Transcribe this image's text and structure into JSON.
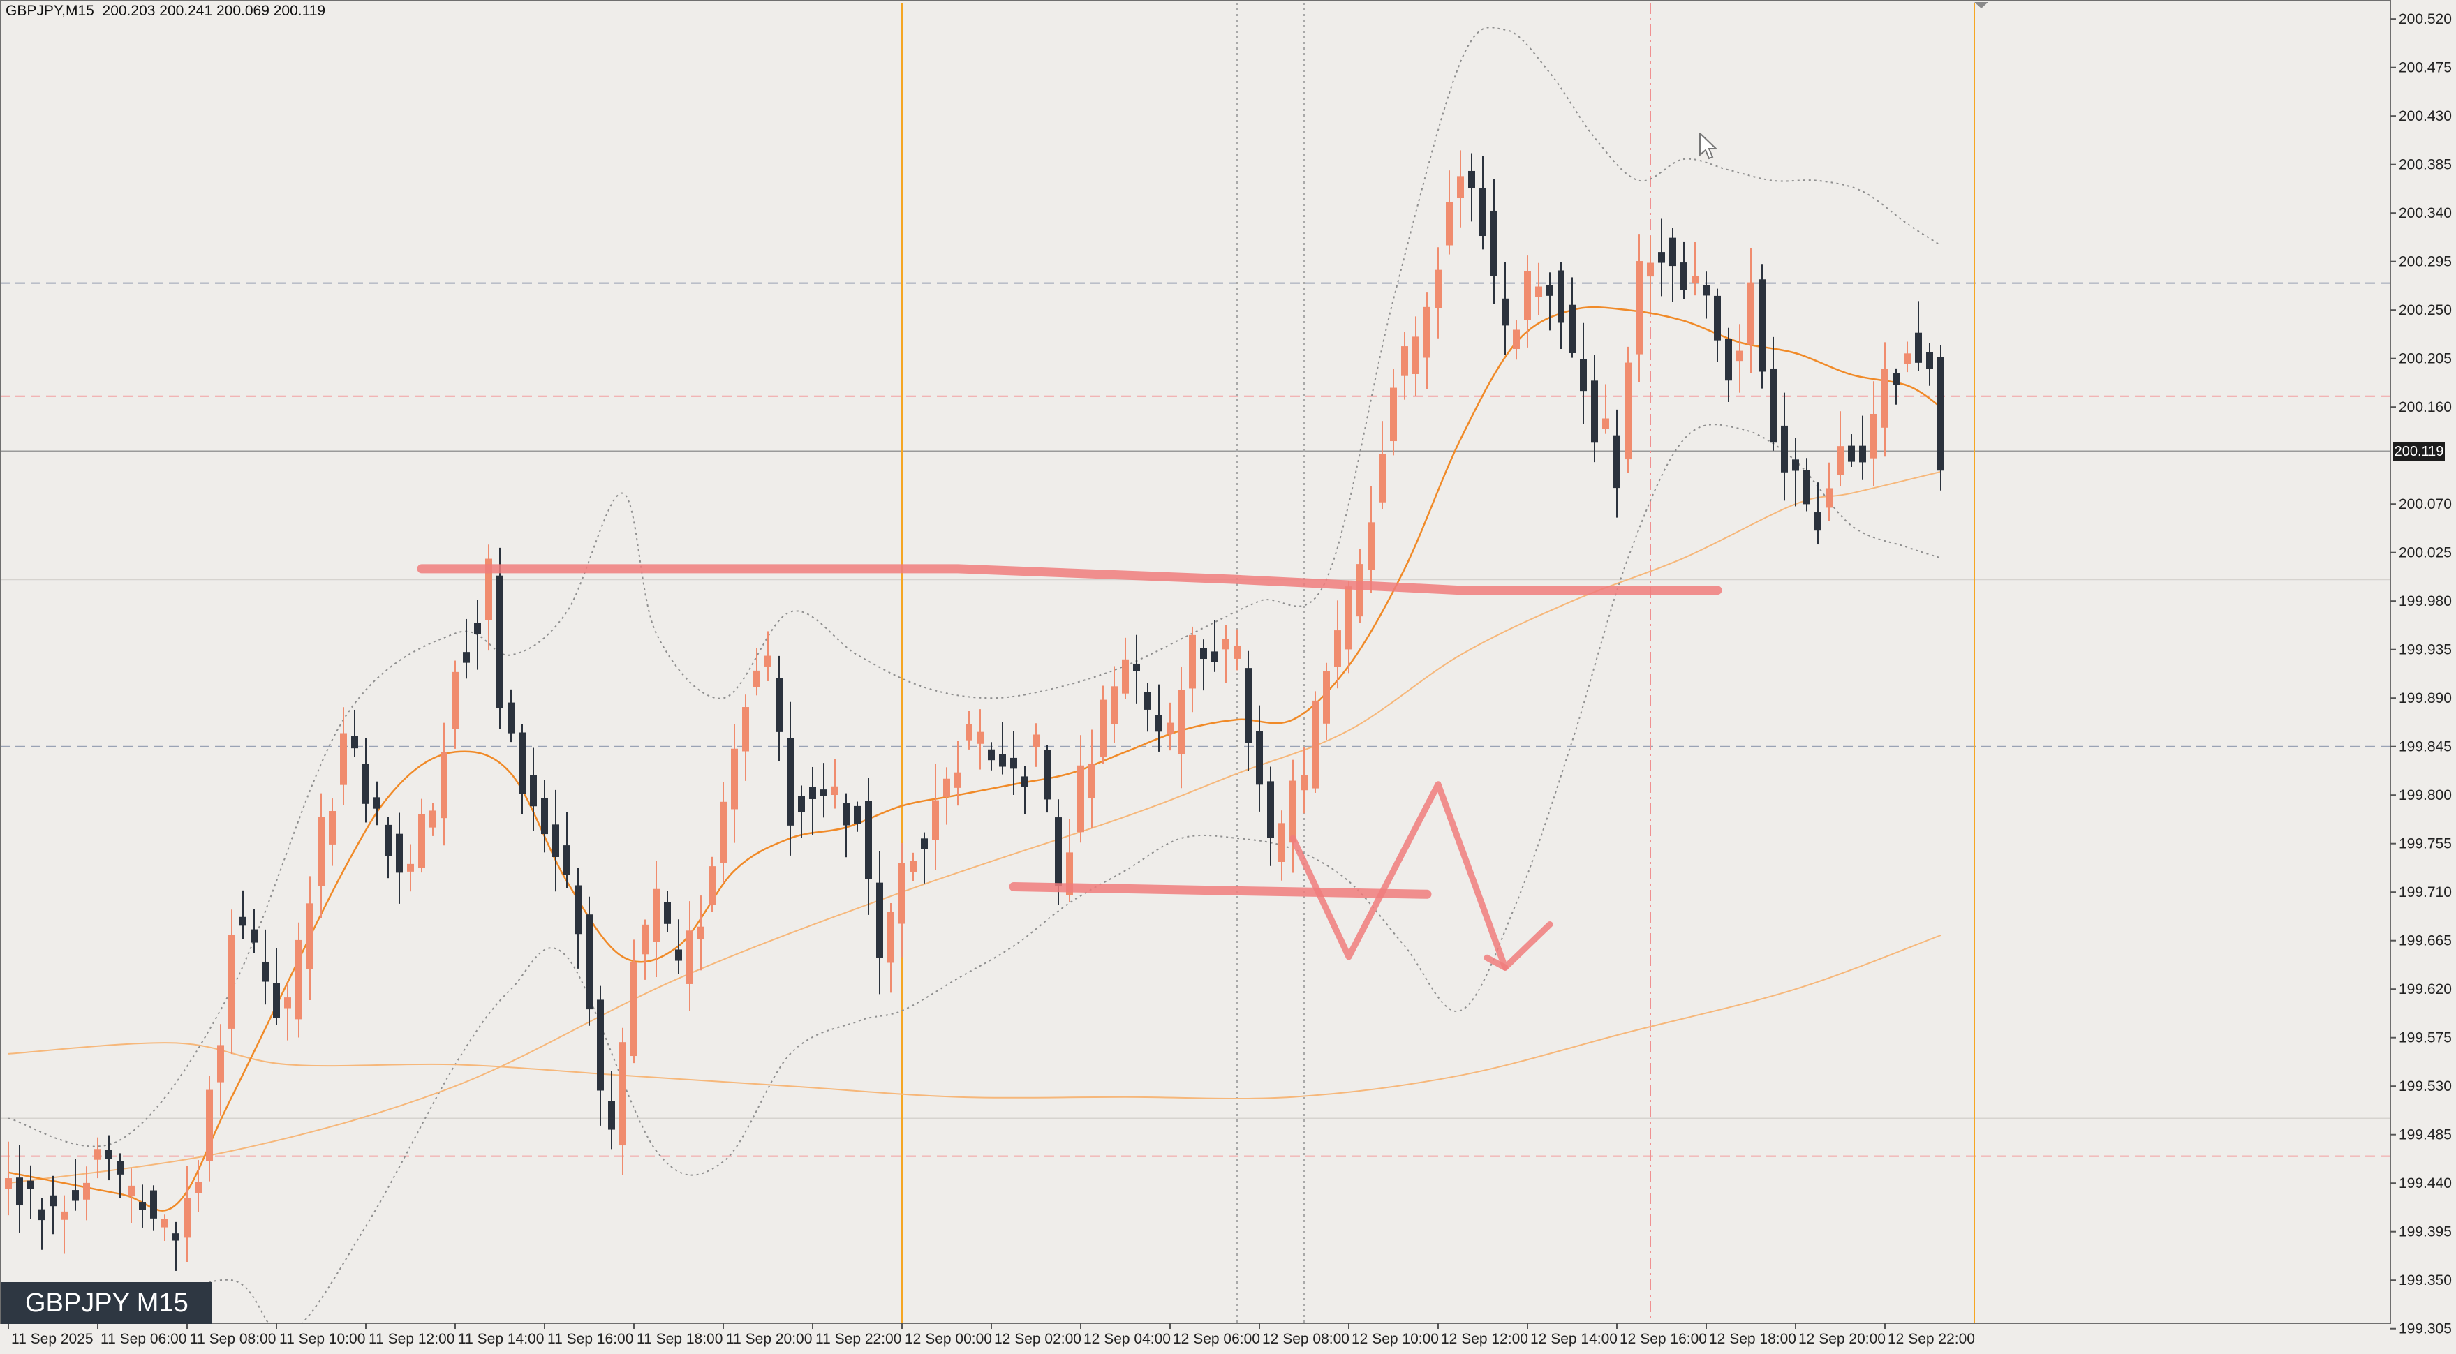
{
  "window": {
    "header_symbol": "GBPJPY,M15",
    "header_ohlc": "200.203 200.241 200.069 200.119",
    "symbol_badge": "GBPJPY M15",
    "current_price_label": "200.119"
  },
  "colors": {
    "background": "#efedea",
    "bull_candle": "#f08c6e",
    "bear_candle": "#2b323d",
    "ma_fast": "#f08a28",
    "ma_slow": "#f6b77a",
    "bollinger": "#8f8f8f",
    "drawing": "#f07c7c",
    "session_line": "#f5a623",
    "dashed_blue": "#9aa3b5",
    "dashed_red": "#f2a1a1"
  },
  "chart_data": {
    "type": "candlestick",
    "ylim": [
      199.31,
      200.535
    ],
    "y_ticks": [
      "200.520",
      "200.475",
      "200.430",
      "200.385",
      "200.340",
      "200.295",
      "200.250",
      "200.205",
      "200.160",
      "200.070",
      "200.025",
      "199.980",
      "199.935",
      "199.890",
      "199.845",
      "199.800",
      "199.755",
      "199.710",
      "199.665",
      "199.620",
      "199.575",
      "199.530",
      "199.485",
      "199.440",
      "199.395",
      "199.350",
      "199.305"
    ],
    "x_ticks": [
      {
        "label": "11 Sep 2025",
        "bar": 0
      },
      {
        "label": "11 Sep 06:00",
        "bar": 8
      },
      {
        "label": "11 Sep 08:00",
        "bar": 16
      },
      {
        "label": "11 Sep 10:00",
        "bar": 24
      },
      {
        "label": "11 Sep 12:00",
        "bar": 32
      },
      {
        "label": "11 Sep 14:00",
        "bar": 40
      },
      {
        "label": "11 Sep 16:00",
        "bar": 48
      },
      {
        "label": "11 Sep 18:00",
        "bar": 56
      },
      {
        "label": "11 Sep 20:00",
        "bar": 64
      },
      {
        "label": "11 Sep 22:00",
        "bar": 72
      },
      {
        "label": "12 Sep 00:00",
        "bar": 80
      },
      {
        "label": "12 Sep 02:00",
        "bar": 88
      },
      {
        "label": "12 Sep 04:00",
        "bar": 96
      },
      {
        "label": "12 Sep 06:00",
        "bar": 104
      },
      {
        "label": "12 Sep 08:00",
        "bar": 112
      },
      {
        "label": "12 Sep 10:00",
        "bar": 120
      },
      {
        "label": "12 Sep 12:00",
        "bar": 128
      },
      {
        "label": "12 Sep 14:00",
        "bar": 136
      },
      {
        "label": "12 Sep 16:00",
        "bar": 144
      },
      {
        "label": "12 Sep 18:00",
        "bar": 152
      },
      {
        "label": "12 Sep 20:00",
        "bar": 160
      },
      {
        "label": "12 Sep 22:00",
        "bar": 168
      }
    ],
    "close_path": [
      [
        0,
        199.44
      ],
      [
        4,
        199.41
      ],
      [
        8,
        199.46
      ],
      [
        12,
        199.42
      ],
      [
        15,
        199.39
      ],
      [
        17,
        199.46
      ],
      [
        19,
        199.58
      ],
      [
        20,
        199.69
      ],
      [
        23,
        199.62
      ],
      [
        25,
        199.6
      ],
      [
        28,
        199.76
      ],
      [
        30,
        199.85
      ],
      [
        33,
        199.78
      ],
      [
        35,
        199.72
      ],
      [
        38,
        199.79
      ],
      [
        40,
        199.92
      ],
      [
        42,
        199.97
      ],
      [
        43,
        200.01
      ],
      [
        44,
        199.88
      ],
      [
        46,
        199.82
      ],
      [
        48,
        199.77
      ],
      [
        50,
        199.73
      ],
      [
        52,
        199.62
      ],
      [
        53,
        199.51
      ],
      [
        54,
        199.47
      ],
      [
        56,
        199.64
      ],
      [
        58,
        199.7
      ],
      [
        60,
        199.63
      ],
      [
        62,
        199.69
      ],
      [
        64,
        199.8
      ],
      [
        66,
        199.9
      ],
      [
        68,
        199.92
      ],
      [
        70,
        199.79
      ],
      [
        72,
        199.8
      ],
      [
        74,
        199.8
      ],
      [
        76,
        199.78
      ],
      [
        78,
        199.64
      ],
      [
        80,
        199.73
      ],
      [
        82,
        199.76
      ],
      [
        84,
        199.82
      ],
      [
        86,
        199.86
      ],
      [
        88,
        199.85
      ],
      [
        90,
        199.82
      ],
      [
        92,
        199.85
      ],
      [
        94,
        199.72
      ],
      [
        96,
        199.81
      ],
      [
        98,
        199.87
      ],
      [
        100,
        199.92
      ],
      [
        102,
        199.88
      ],
      [
        104,
        199.84
      ],
      [
        106,
        199.93
      ],
      [
        108,
        199.95
      ],
      [
        110,
        199.92
      ],
      [
        112,
        199.8
      ],
      [
        113,
        199.75
      ],
      [
        114,
        199.77
      ],
      [
        116,
        199.82
      ],
      [
        118,
        199.92
      ],
      [
        120,
        199.98
      ],
      [
        122,
        200.06
      ],
      [
        124,
        200.18
      ],
      [
        126,
        200.22
      ],
      [
        128,
        200.3
      ],
      [
        130,
        200.39
      ],
      [
        132,
        200.33
      ],
      [
        134,
        200.22
      ],
      [
        136,
        200.27
      ],
      [
        138,
        200.28
      ],
      [
        140,
        200.21
      ],
      [
        142,
        200.14
      ],
      [
        144,
        200.1
      ],
      [
        146,
        200.29
      ],
      [
        148,
        200.31
      ],
      [
        150,
        200.27
      ],
      [
        152,
        200.26
      ],
      [
        154,
        200.19
      ],
      [
        156,
        200.27
      ],
      [
        158,
        200.13
      ],
      [
        160,
        200.09
      ],
      [
        162,
        200.06
      ],
      [
        164,
        200.12
      ],
      [
        166,
        200.1
      ],
      [
        168,
        200.18
      ],
      [
        170,
        200.22
      ],
      [
        172,
        200.2
      ],
      [
        173,
        200.12
      ]
    ],
    "ma_fast": [
      [
        0,
        199.45
      ],
      [
        10,
        199.43
      ],
      [
        15,
        199.42
      ],
      [
        20,
        199.52
      ],
      [
        30,
        199.73
      ],
      [
        35,
        199.81
      ],
      [
        40,
        199.84
      ],
      [
        45,
        199.82
      ],
      [
        50,
        199.72
      ],
      [
        55,
        199.65
      ],
      [
        60,
        199.66
      ],
      [
        65,
        199.73
      ],
      [
        70,
        199.76
      ],
      [
        75,
        199.77
      ],
      [
        80,
        199.79
      ],
      [
        85,
        199.8
      ],
      [
        90,
        199.81
      ],
      [
        95,
        199.82
      ],
      [
        100,
        199.84
      ],
      [
        105,
        199.86
      ],
      [
        110,
        199.87
      ],
      [
        115,
        199.87
      ],
      [
        120,
        199.92
      ],
      [
        125,
        200.01
      ],
      [
        130,
        200.13
      ],
      [
        135,
        200.22
      ],
      [
        140,
        200.25
      ],
      [
        145,
        200.25
      ],
      [
        150,
        200.24
      ],
      [
        155,
        200.22
      ],
      [
        160,
        200.21
      ],
      [
        165,
        200.19
      ],
      [
        170,
        200.18
      ],
      [
        173,
        200.16
      ]
    ],
    "ma_slow": [
      [
        0,
        199.44
      ],
      [
        20,
        199.47
      ],
      [
        40,
        199.53
      ],
      [
        60,
        199.63
      ],
      [
        80,
        199.71
      ],
      [
        100,
        199.78
      ],
      [
        110,
        199.82
      ],
      [
        120,
        199.86
      ],
      [
        130,
        199.93
      ],
      [
        140,
        199.98
      ],
      [
        150,
        200.02
      ],
      [
        160,
        200.07
      ],
      [
        165,
        200.08
      ],
      [
        173,
        200.1
      ]
    ],
    "ma_long": [
      [
        0,
        199.56
      ],
      [
        15,
        199.57
      ],
      [
        25,
        199.55
      ],
      [
        40,
        199.55
      ],
      [
        55,
        199.54
      ],
      [
        70,
        199.53
      ],
      [
        85,
        199.52
      ],
      [
        100,
        199.52
      ],
      [
        115,
        199.52
      ],
      [
        130,
        199.54
      ],
      [
        145,
        199.58
      ],
      [
        160,
        199.62
      ],
      [
        173,
        199.67
      ]
    ],
    "bb_upper": [
      [
        0,
        199.5
      ],
      [
        10,
        199.48
      ],
      [
        20,
        199.62
      ],
      [
        30,
        199.87
      ],
      [
        40,
        199.95
      ],
      [
        45,
        199.93
      ],
      [
        50,
        199.97
      ],
      [
        55,
        200.08
      ],
      [
        58,
        199.95
      ],
      [
        64,
        199.89
      ],
      [
        70,
        199.97
      ],
      [
        76,
        199.93
      ],
      [
        82,
        199.9
      ],
      [
        88,
        199.89
      ],
      [
        94,
        199.9
      ],
      [
        100,
        199.92
      ],
      [
        106,
        199.95
      ],
      [
        112,
        199.98
      ],
      [
        118,
        200.0
      ],
      [
        124,
        200.26
      ],
      [
        130,
        200.48
      ],
      [
        134,
        200.51
      ],
      [
        138,
        200.47
      ],
      [
        142,
        200.41
      ],
      [
        146,
        200.37
      ],
      [
        150,
        200.39
      ],
      [
        154,
        200.38
      ],
      [
        158,
        200.37
      ],
      [
        162,
        200.37
      ],
      [
        166,
        200.36
      ],
      [
        170,
        200.33
      ],
      [
        173,
        200.31
      ]
    ],
    "bb_lower": [
      [
        5,
        199.31
      ],
      [
        10,
        199.32
      ],
      [
        20,
        199.35
      ],
      [
        25,
        199.3
      ],
      [
        32,
        199.4
      ],
      [
        40,
        199.55
      ],
      [
        45,
        199.62
      ],
      [
        50,
        199.65
      ],
      [
        58,
        199.47
      ],
      [
        64,
        199.46
      ],
      [
        70,
        199.56
      ],
      [
        76,
        199.59
      ],
      [
        80,
        199.6
      ],
      [
        85,
        199.63
      ],
      [
        90,
        199.66
      ],
      [
        95,
        199.7
      ],
      [
        100,
        199.73
      ],
      [
        105,
        199.76
      ],
      [
        110,
        199.76
      ],
      [
        115,
        199.75
      ],
      [
        120,
        199.72
      ],
      [
        125,
        199.66
      ],
      [
        130,
        199.6
      ],
      [
        135,
        199.7
      ],
      [
        140,
        199.85
      ],
      [
        145,
        200.02
      ],
      [
        150,
        200.13
      ],
      [
        155,
        200.14
      ],
      [
        160,
        200.11
      ],
      [
        165,
        200.05
      ],
      [
        170,
        200.03
      ],
      [
        173,
        200.02
      ]
    ],
    "annotations": [
      {
        "name": "resistance-line",
        "points": [
          [
            37,
            200.01
          ],
          [
            60,
            200.01
          ],
          [
            85,
            200.01
          ],
          [
            110,
            200.0
          ],
          [
            130,
            199.99
          ],
          [
            153,
            199.99
          ]
        ]
      },
      {
        "name": "support-line",
        "points": [
          [
            90,
            199.715
          ],
          [
            127,
            199.708
          ]
        ]
      },
      {
        "name": "projection-zigzag",
        "points": [
          [
            115,
            199.76
          ],
          [
            120,
            199.65
          ],
          [
            128,
            199.81
          ],
          [
            134,
            199.64
          ],
          [
            138,
            199.68
          ]
        ]
      }
    ],
    "horizontal_levels": [
      {
        "name": "level-blue-upper",
        "value": 200.275,
        "style": "dashed-blue"
      },
      {
        "name": "level-red-upper",
        "value": 200.17,
        "style": "dashed-red"
      },
      {
        "name": "level-current",
        "value": 200.119,
        "style": "solid-gray"
      },
      {
        "name": "level-gray-mid",
        "value": 200.0,
        "style": "solid-light"
      },
      {
        "name": "level-blue-lower",
        "value": 199.845,
        "style": "dashed-blue"
      },
      {
        "name": "level-red-lower",
        "value": 199.465,
        "style": "dashed-red"
      },
      {
        "name": "level-gray-low",
        "value": 199.5,
        "style": "solid-light"
      }
    ],
    "vertical_markers": [
      {
        "name": "session-line-1",
        "bar": 80,
        "style": "solid-orange"
      },
      {
        "name": "session-line-2",
        "bar": 110,
        "style": "dotted-gray"
      },
      {
        "name": "session-line-3",
        "bar": 116,
        "style": "dotted-gray"
      },
      {
        "name": "session-line-4",
        "bar": 147,
        "style": "dashdot-red"
      },
      {
        "name": "session-line-5",
        "bar": 176,
        "style": "solid-orange"
      }
    ]
  }
}
